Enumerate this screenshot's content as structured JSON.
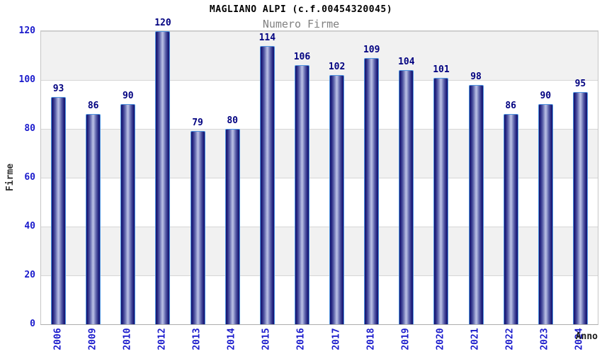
{
  "chart": {
    "title": "MAGLIANO ALPI (c.f.00454320045)",
    "subtitle": "Numero Firme",
    "ylabel": "Firme",
    "xlabel": "Anno"
  },
  "chart_data": {
    "type": "bar",
    "title": "MAGLIANO ALPI (c.f.00454320045)",
    "subtitle": "Numero Firme",
    "xlabel": "Anno",
    "ylabel": "Firme",
    "categories": [
      "2006",
      "2009",
      "2010",
      "2012",
      "2013",
      "2014",
      "2015",
      "2016",
      "2017",
      "2018",
      "2019",
      "2020",
      "2021",
      "2022",
      "2023",
      "2024"
    ],
    "values": [
      93,
      86,
      90,
      120,
      79,
      80,
      114,
      106,
      102,
      109,
      104,
      101,
      98,
      86,
      90,
      95
    ],
    "ylim": [
      0,
      120
    ],
    "yticks": [
      0,
      20,
      40,
      60,
      80,
      100,
      120
    ],
    "grid": "horizontal-bands-alternating",
    "legend": "none",
    "colors": {
      "bar_dark": "#14146e",
      "bar_light": "#b9bfe4",
      "bar_border": "#4f94e0",
      "value_label": "#000080",
      "tick_label": "#1b1bcc",
      "axis_title": "#333333",
      "band_gray": "#f1f1f1",
      "band_white": "#ffffff",
      "subtitle_gray": "#808080",
      "title_black": "#000000"
    }
  }
}
